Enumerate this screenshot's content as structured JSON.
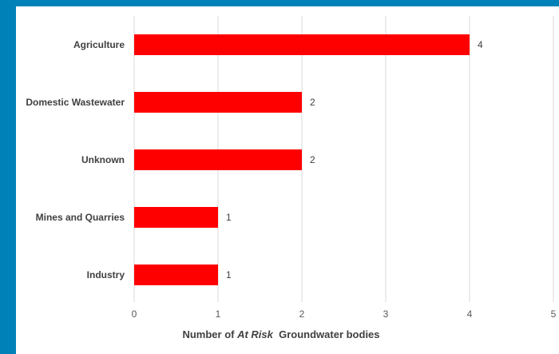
{
  "chart_data": {
    "type": "bar",
    "orientation": "horizontal",
    "categories": [
      "Agriculture",
      "Domestic Wastewater",
      "Unknown",
      "Mines and Quarries",
      "Industry"
    ],
    "values": [
      4,
      2,
      2,
      1,
      1
    ],
    "xlabel_parts": [
      {
        "text": "Number of ",
        "italic": false
      },
      {
        "text": "At Risk",
        "italic": true
      },
      {
        "text": "  Groundwater bodies",
        "italic": false
      }
    ],
    "xlim": [
      0,
      5
    ],
    "xticks": [
      "0",
      "1",
      "2",
      "3",
      "4",
      "5"
    ],
    "grid": true,
    "data_labels": true,
    "bar_color": "#ff0000",
    "grid_color": "#d9d9d9"
  }
}
